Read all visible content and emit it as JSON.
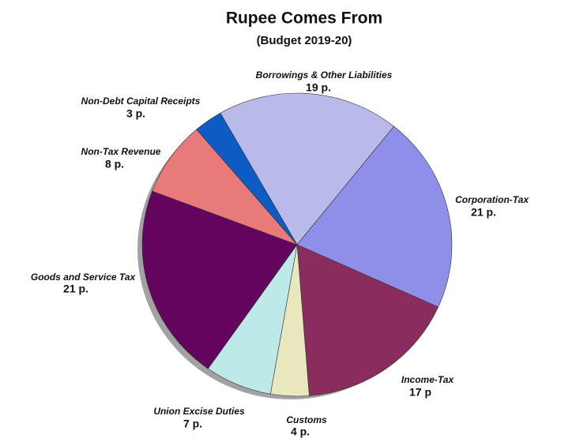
{
  "chart_data": {
    "type": "pie",
    "title": "Rupee Comes From",
    "subtitle": "(Budget 2019-20)",
    "categories": [
      "Borrowings & Other Liabilities",
      "Corporation-Tax",
      "Income-Tax",
      "Customs",
      "Union Excise Duties",
      "Goods and Service Tax",
      "Non-Tax Revenue",
      "Non-Debt Capital Receipts"
    ],
    "values": [
      19,
      21,
      17,
      4,
      7,
      21,
      8,
      3
    ],
    "value_labels": [
      "19 p.",
      "21 p.",
      "17 p",
      "4 p.",
      "7 p.",
      "21 p.",
      "8 p.",
      "3 p."
    ],
    "colors": [
      "#b9b9ea",
      "#8f8fea",
      "#8a2d5e",
      "#e9e7bd",
      "#bee9e9",
      "#63055f",
      "#e97a7a",
      "#0d5cc6"
    ]
  }
}
